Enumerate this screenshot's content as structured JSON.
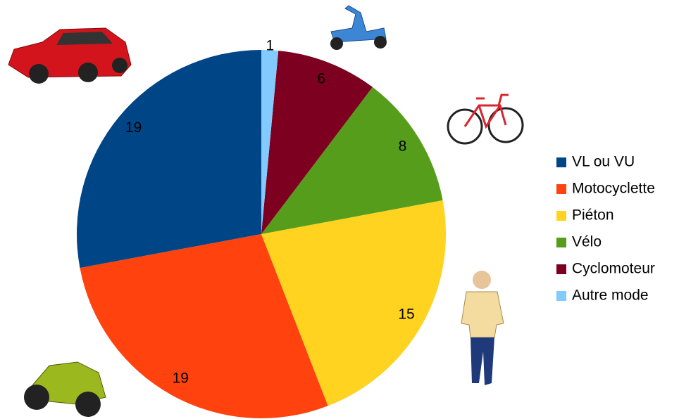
{
  "chart_data": {
    "type": "pie",
    "categories": [
      "VL ou VU",
      "Motocyclette",
      "Piéton",
      "Vélo",
      "Cyclomoteur",
      "Autre mode"
    ],
    "values": [
      19,
      19,
      15,
      8,
      6,
      1
    ],
    "colors": [
      "#004586",
      "#ff420e",
      "#ffd320",
      "#579d1c",
      "#7e0021",
      "#83caff"
    ],
    "legend": "right"
  }
}
